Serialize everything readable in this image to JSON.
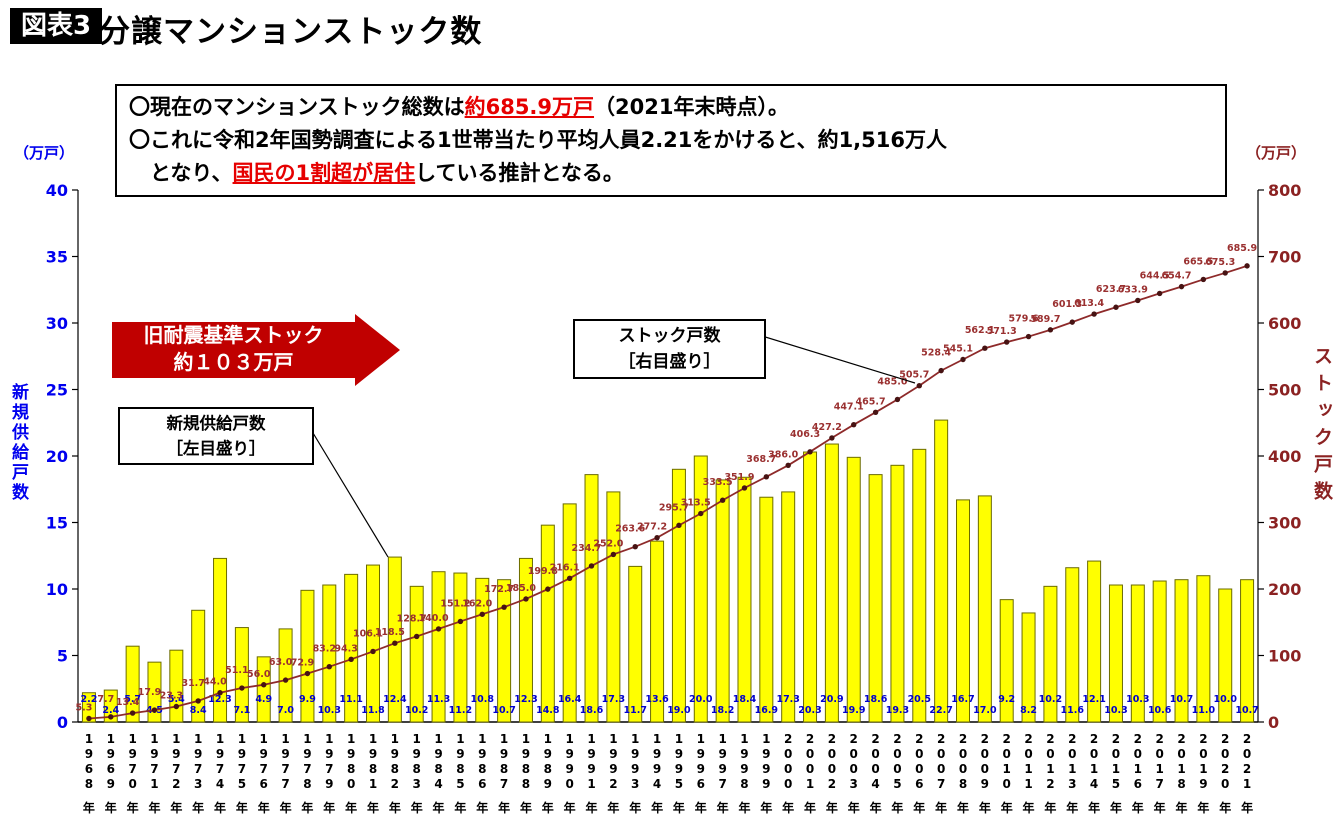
{
  "header": {
    "badge": "図表3",
    "title": "分譲マンションストック数"
  },
  "info_box": {
    "line1_prefix": "〇現在のマンションストック総数は",
    "line1_highlight": "約685.9万戸",
    "line1_suffix": "（2021年末時点）。",
    "line2": "〇これに令和2年国勢調査による1世帯当たり平均人員2.21をかけると、約1,516万人",
    "line3_prefix": "　となり、",
    "line3_highlight": "国民の1割超が居住",
    "line3_suffix": "している推計となる。"
  },
  "annotations": {
    "arrow_line1": "旧耐震基準ストック",
    "arrow_line2": "約１０３万戸",
    "supply_callout_line1": "新規供給戸数",
    "supply_callout_line2": "［左目盛り］",
    "stock_callout_line1": "ストック戸数",
    "stock_callout_line2": "［右目盛り］"
  },
  "axes": {
    "left_unit": "（万戸）",
    "right_unit": "（万戸）",
    "left_title": "新規供給戸数",
    "right_title": "ストック戸数",
    "left_ticks": [
      0,
      5,
      10,
      15,
      20,
      25,
      30,
      35,
      40
    ],
    "right_ticks": [
      0,
      100,
      200,
      300,
      400,
      500,
      600,
      700,
      800
    ]
  },
  "colors": {
    "bar_fill": "#ffff00",
    "bar_stroke": "#6b6b00",
    "bar_label": "#0000cd",
    "line": "#8e2a2a",
    "marker": "#471313",
    "line_label": "#9a3030",
    "left_axis": "#0000ee",
    "right_axis": "#8b2222",
    "arrow_bg": "#c00000",
    "axis_line": "#000000"
  },
  "chart_data": {
    "type": "bar+line",
    "title": "分譲マンションストック数",
    "category_suffix": "年",
    "categories": [
      "1968",
      "1969",
      "1970",
      "1971",
      "1972",
      "1973",
      "1974",
      "1975",
      "1976",
      "1977",
      "1978",
      "1979",
      "1980",
      "1981",
      "1982",
      "1983",
      "1984",
      "1985",
      "1986",
      "1987",
      "1988",
      "1989",
      "1990",
      "1991",
      "1992",
      "1993",
      "1994",
      "1995",
      "1996",
      "1997",
      "1998",
      "1999",
      "2000",
      "2001",
      "2002",
      "2003",
      "2004",
      "2005",
      "2006",
      "2007",
      "2008",
      "2009",
      "2010",
      "2011",
      "2012",
      "2013",
      "2014",
      "2015",
      "2016",
      "2017",
      "2018",
      "2019",
      "2020",
      "2021"
    ],
    "left_axis": {
      "label": "新規供給戸数",
      "unit": "（万戸）",
      "range": [
        0,
        40
      ]
    },
    "right_axis": {
      "label": "ストック戸数",
      "unit": "（万戸）",
      "range": [
        0,
        800
      ]
    },
    "series": [
      {
        "name": "新規供給戸数［左目盛り］",
        "type": "bar",
        "axis": "left",
        "values": [
          2.2,
          2.4,
          5.7,
          4.5,
          5.4,
          8.4,
          12.3,
          7.1,
          4.9,
          7.0,
          9.9,
          10.3,
          11.1,
          11.8,
          12.4,
          10.2,
          11.3,
          11.2,
          10.8,
          10.7,
          12.3,
          14.8,
          16.4,
          18.6,
          17.3,
          11.7,
          13.6,
          19.0,
          20.0,
          18.2,
          18.4,
          16.9,
          17.3,
          20.3,
          20.9,
          19.9,
          18.6,
          19.3,
          20.5,
          22.7,
          16.7,
          17.0,
          9.2,
          8.2,
          10.2,
          11.6,
          12.1,
          10.3,
          10.3,
          10.6,
          10.7,
          11.0,
          10.0,
          10.7
        ]
      },
      {
        "name": "ストック戸数［右目盛り］",
        "type": "line",
        "axis": "right",
        "values": [
          5.3,
          7.7,
          13.4,
          17.9,
          23.3,
          31.7,
          44.0,
          51.1,
          56.0,
          63.0,
          72.9,
          83.2,
          94.3,
          106.1,
          118.5,
          128.7,
          140.0,
          151.2,
          162.0,
          172.7,
          185.0,
          199.8,
          216.1,
          234.7,
          252.0,
          263.6,
          277.2,
          295.7,
          313.5,
          333.5,
          351.9,
          368.7,
          386.0,
          406.3,
          427.2,
          447.1,
          465.7,
          485.0,
          505.7,
          528.4,
          545.1,
          562.1,
          571.3,
          579.6,
          589.7,
          601.3,
          613.4,
          623.7,
          633.9,
          644.5,
          654.7,
          665.5,
          675.3,
          685.9
        ]
      }
    ]
  }
}
